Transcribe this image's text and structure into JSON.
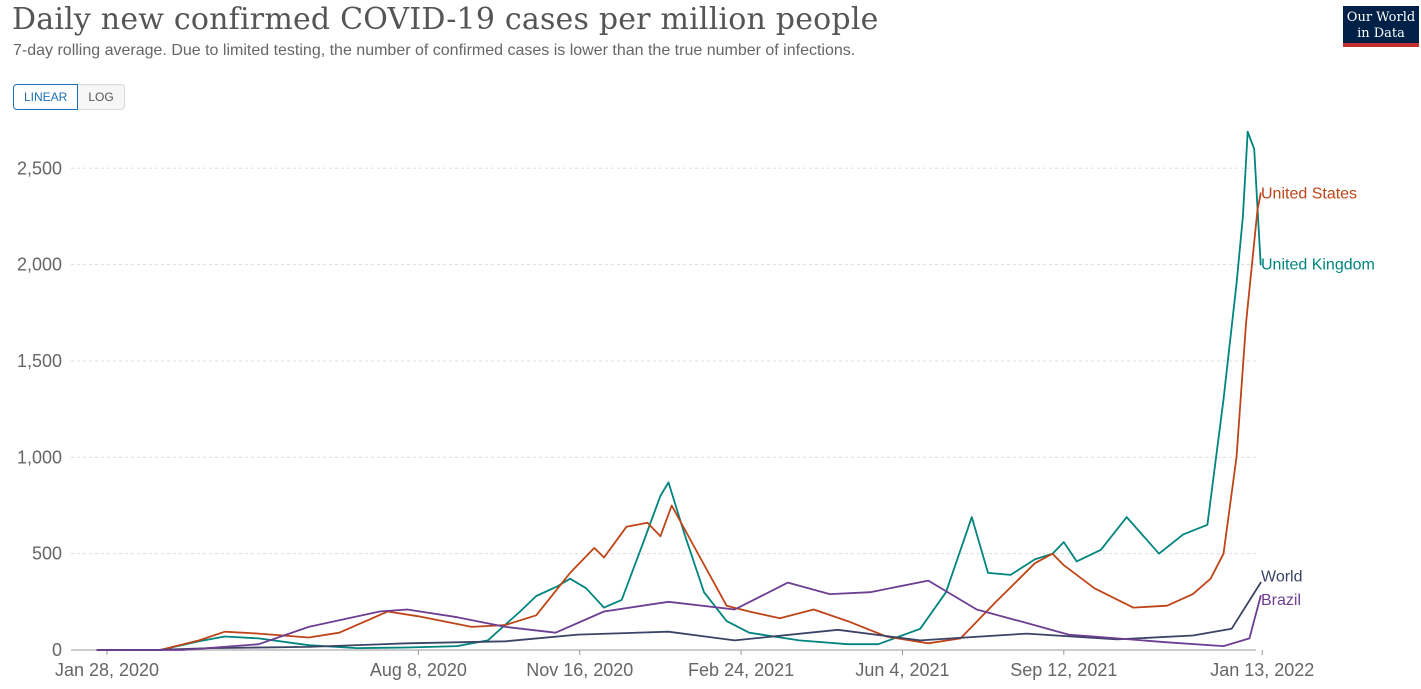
{
  "header": {
    "title": "Daily new confirmed COVID-19 cases per million people",
    "subtitle": "7-day rolling average. Due to limited testing, the number of confirmed cases is lower than the true number of infections.",
    "logo_line1": "Our World",
    "logo_line2": "in Data"
  },
  "scale_toggle": {
    "linear_label": "LINEAR",
    "log_label": "LOG",
    "selected": "LINEAR"
  },
  "chart_data": {
    "type": "line",
    "title": "Daily new confirmed COVID-19 cases per million people",
    "subtitle": "7-day rolling average. Due to limited testing, the number of confirmed cases is lower than the true number of infections.",
    "xlabel": "",
    "ylabel": "",
    "x_range": [
      "2020-01-22",
      "2022-01-25"
    ],
    "y_range": [
      0,
      2700
    ],
    "y_ticks": [
      0,
      500,
      1000,
      1500,
      2000,
      2500
    ],
    "y_tick_labels": [
      "0",
      "500",
      "1,000",
      "1,500",
      "2,000",
      "2,500"
    ],
    "x_ticks": [
      "2020-01-28",
      "2020-08-08",
      "2020-11-16",
      "2021-02-24",
      "2021-06-04",
      "2021-09-12",
      "2022-01-13"
    ],
    "x_tick_labels": [
      "Jan 28, 2020",
      "Aug 8, 2020",
      "Nov 16, 2020",
      "Feb 24, 2021",
      "Jun 4, 2021",
      "Sep 12, 2021",
      "Jan 13, 2022"
    ],
    "grid": "horizontal dashed",
    "legend": "inline labels at line ends (right)",
    "series": [
      {
        "name": "United Kingdom",
        "color": "#00847e",
        "points": [
          [
            "2020-01-22",
            0
          ],
          [
            "2020-03-01",
            0
          ],
          [
            "2020-03-25",
            45
          ],
          [
            "2020-04-10",
            70
          ],
          [
            "2020-05-01",
            60
          ],
          [
            "2020-06-01",
            25
          ],
          [
            "2020-07-01",
            10
          ],
          [
            "2020-08-01",
            13
          ],
          [
            "2020-09-01",
            20
          ],
          [
            "2020-09-20",
            50
          ],
          [
            "2020-10-10",
            200
          ],
          [
            "2020-10-20",
            280
          ],
          [
            "2020-11-02",
            330
          ],
          [
            "2020-11-10",
            370
          ],
          [
            "2020-11-20",
            320
          ],
          [
            "2020-12-01",
            220
          ],
          [
            "2020-12-12",
            260
          ],
          [
            "2020-12-25",
            550
          ],
          [
            "2021-01-05",
            800
          ],
          [
            "2021-01-10",
            870
          ],
          [
            "2021-01-20",
            600
          ],
          [
            "2021-02-01",
            300
          ],
          [
            "2021-02-15",
            150
          ],
          [
            "2021-03-01",
            90
          ],
          [
            "2021-04-01",
            50
          ],
          [
            "2021-05-01",
            30
          ],
          [
            "2021-05-20",
            30
          ],
          [
            "2021-06-15",
            110
          ],
          [
            "2021-07-01",
            300
          ],
          [
            "2021-07-17",
            690
          ],
          [
            "2021-07-27",
            400
          ],
          [
            "2021-08-10",
            390
          ],
          [
            "2021-08-25",
            470
          ],
          [
            "2021-09-05",
            500
          ],
          [
            "2021-09-12",
            560
          ],
          [
            "2021-09-20",
            460
          ],
          [
            "2021-10-05",
            520
          ],
          [
            "2021-10-21",
            690
          ],
          [
            "2021-11-10",
            500
          ],
          [
            "2021-11-25",
            600
          ],
          [
            "2021-12-10",
            650
          ],
          [
            "2021-12-20",
            1300
          ],
          [
            "2021-12-28",
            1900
          ],
          [
            "2022-01-01",
            2250
          ],
          [
            "2022-01-04",
            2690
          ],
          [
            "2022-01-08",
            2600
          ],
          [
            "2022-01-12",
            2000
          ]
        ]
      },
      {
        "name": "United States",
        "color": "#be4518",
        "points": [
          [
            "2020-01-22",
            0
          ],
          [
            "2020-03-01",
            0
          ],
          [
            "2020-03-25",
            50
          ],
          [
            "2020-04-10",
            95
          ],
          [
            "2020-05-01",
            85
          ],
          [
            "2020-06-01",
            65
          ],
          [
            "2020-06-20",
            90
          ],
          [
            "2020-07-20",
            200
          ],
          [
            "2020-08-08",
            175
          ],
          [
            "2020-09-10",
            120
          ],
          [
            "2020-10-01",
            130
          ],
          [
            "2020-10-20",
            180
          ],
          [
            "2020-11-10",
            400
          ],
          [
            "2020-11-25",
            530
          ],
          [
            "2020-12-01",
            480
          ],
          [
            "2020-12-15",
            640
          ],
          [
            "2020-12-28",
            660
          ],
          [
            "2021-01-05",
            590
          ],
          [
            "2021-01-12",
            750
          ],
          [
            "2021-01-25",
            550
          ],
          [
            "2021-02-15",
            230
          ],
          [
            "2021-03-01",
            200
          ],
          [
            "2021-03-20",
            165
          ],
          [
            "2021-04-10",
            210
          ],
          [
            "2021-05-01",
            150
          ],
          [
            "2021-05-25",
            70
          ],
          [
            "2021-06-20",
            35
          ],
          [
            "2021-07-10",
            60
          ],
          [
            "2021-08-01",
            250
          ],
          [
            "2021-08-25",
            450
          ],
          [
            "2021-09-05",
            500
          ],
          [
            "2021-09-12",
            440
          ],
          [
            "2021-10-01",
            320
          ],
          [
            "2021-10-25",
            220
          ],
          [
            "2021-11-15",
            230
          ],
          [
            "2021-12-01",
            290
          ],
          [
            "2021-12-12",
            370
          ],
          [
            "2021-12-20",
            500
          ],
          [
            "2021-12-28",
            1000
          ],
          [
            "2022-01-03",
            1700
          ],
          [
            "2022-01-10",
            2280
          ],
          [
            "2022-01-12",
            2370
          ]
        ]
      },
      {
        "name": "World",
        "color": "#3c4466",
        "points": [
          [
            "2020-01-22",
            0
          ],
          [
            "2020-03-01",
            1
          ],
          [
            "2020-04-01",
            10
          ],
          [
            "2020-06-01",
            16
          ],
          [
            "2020-08-01",
            35
          ],
          [
            "2020-10-01",
            45
          ],
          [
            "2020-11-15",
            80
          ],
          [
            "2021-01-10",
            95
          ],
          [
            "2021-02-20",
            50
          ],
          [
            "2021-04-25",
            105
          ],
          [
            "2021-06-15",
            50
          ],
          [
            "2021-08-20",
            85
          ],
          [
            "2021-10-15",
            55
          ],
          [
            "2021-12-01",
            75
          ],
          [
            "2021-12-25",
            110
          ],
          [
            "2022-01-12",
            350
          ]
        ]
      },
      {
        "name": "Brazil",
        "color": "#6d3e91",
        "points": [
          [
            "2020-01-22",
            0
          ],
          [
            "2020-03-15",
            0
          ],
          [
            "2020-05-01",
            30
          ],
          [
            "2020-06-01",
            120
          ],
          [
            "2020-07-15",
            200
          ],
          [
            "2020-08-01",
            210
          ],
          [
            "2020-09-01",
            170
          ],
          [
            "2020-10-01",
            120
          ],
          [
            "2020-11-01",
            90
          ],
          [
            "2020-12-01",
            200
          ],
          [
            "2021-01-10",
            250
          ],
          [
            "2021-02-20",
            210
          ],
          [
            "2021-03-25",
            350
          ],
          [
            "2021-04-20",
            290
          ],
          [
            "2021-05-15",
            300
          ],
          [
            "2021-06-20",
            360
          ],
          [
            "2021-07-20",
            210
          ],
          [
            "2021-08-20",
            140
          ],
          [
            "2021-09-15",
            80
          ],
          [
            "2021-10-15",
            60
          ],
          [
            "2021-11-15",
            40
          ],
          [
            "2021-12-20",
            20
          ],
          [
            "2022-01-05",
            60
          ],
          [
            "2022-01-12",
            280
          ]
        ]
      }
    ]
  }
}
